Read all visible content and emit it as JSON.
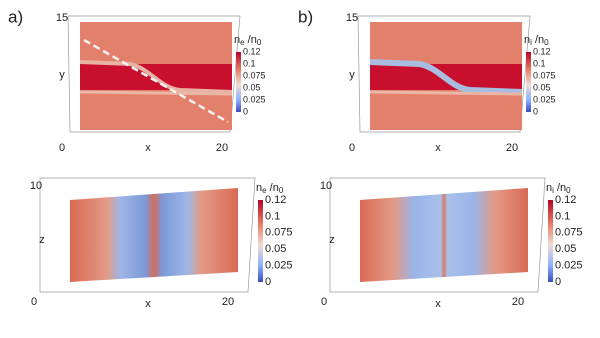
{
  "panels": [
    {
      "label": "a)",
      "plots": [
        {
          "y_axis_label": "y",
          "x_axis_label": "x",
          "x_start": 0,
          "x_end": 20,
          "y_end": 15,
          "colorbar": {
            "title": [
              "n",
              "e",
              " /n",
              "0"
            ],
            "ticks": [
              0.12,
              0.1,
              0.075,
              0.05,
              0.025,
              0
            ]
          }
        },
        {
          "y_axis_label": "z",
          "x_axis_label": "x",
          "x_start": 0,
          "x_end": 20,
          "y_end": 10,
          "colorbar": {
            "title": [
              "n",
              "e",
              " /n",
              "0"
            ],
            "ticks": [
              0.12,
              0.1,
              0.075,
              0.05,
              0.025,
              0
            ]
          }
        }
      ]
    },
    {
      "label": "b)",
      "plots": [
        {
          "y_axis_label": "y",
          "x_axis_label": "x",
          "x_start": 0,
          "x_end": 20,
          "y_end": 15,
          "colorbar": {
            "title": [
              "n",
              "i",
              " /n",
              "0"
            ],
            "ticks": [
              0.12,
              0.1,
              0.075,
              0.05,
              0.025,
              0
            ]
          }
        },
        {
          "y_axis_label": "z",
          "x_axis_label": "x",
          "x_start": 0,
          "x_end": 20,
          "y_end": 10,
          "colorbar": {
            "title": [
              "n",
              "i",
              " /n",
              "0"
            ],
            "ticks": [
              0.12,
              0.1,
              0.075,
              0.05,
              0.025,
              0
            ]
          }
        }
      ]
    }
  ]
}
